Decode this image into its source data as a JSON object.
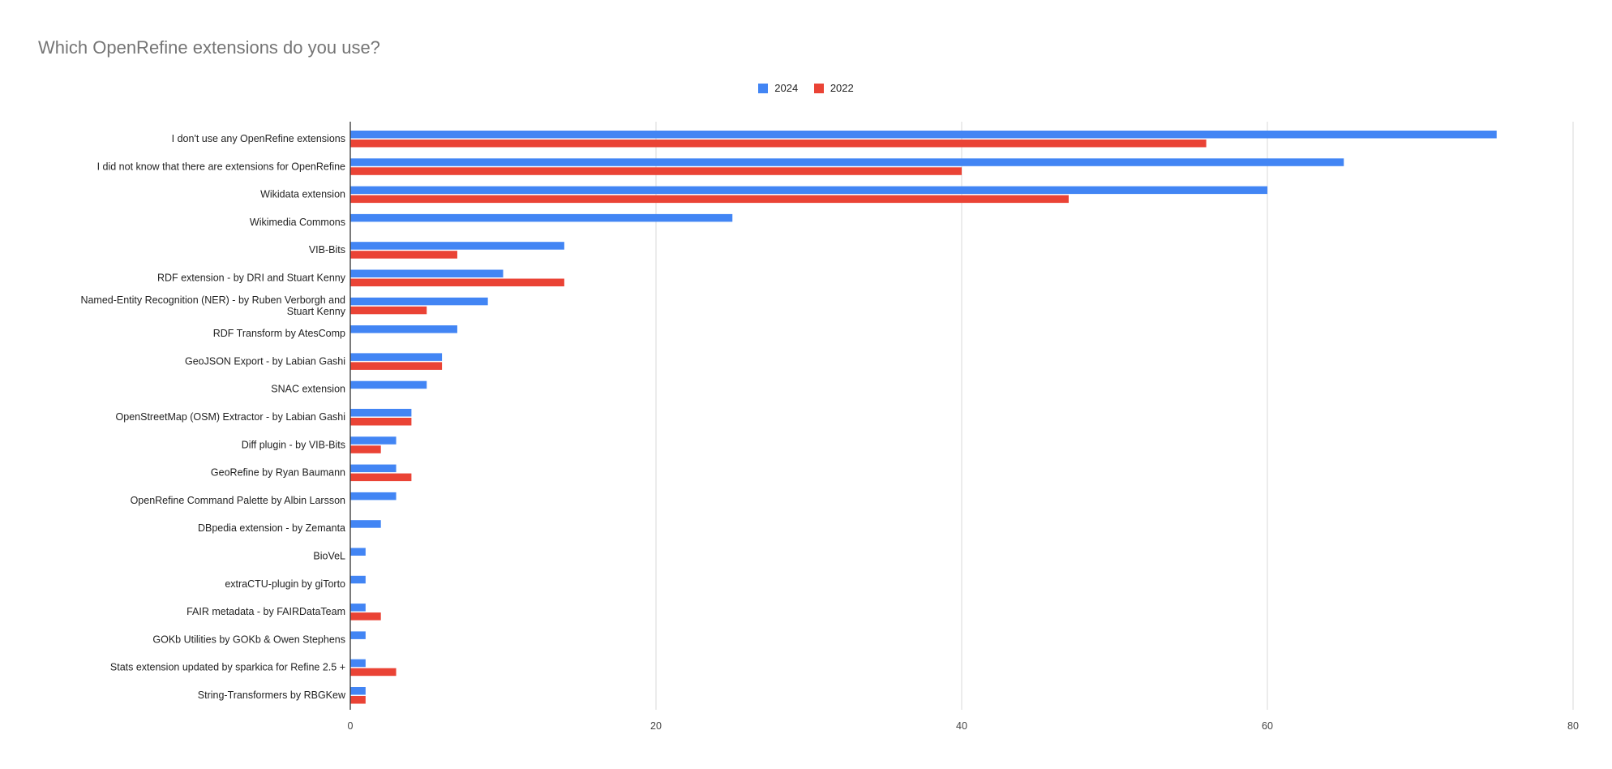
{
  "chart_data": {
    "type": "bar",
    "orientation": "horizontal",
    "title": "Which OpenRefine extensions do you use?",
    "xlabel": "",
    "ylabel": "",
    "xlim": [
      0,
      80
    ],
    "xticks": [
      0,
      20,
      40,
      60,
      80
    ],
    "grid": true,
    "legend_position": "top",
    "categories": [
      "I don't use any OpenRefine extensions",
      "I did not know that there are extensions for OpenRefine",
      "Wikidata extension",
      "Wikimedia Commons",
      "VIB-Bits",
      "RDF extension - by DRI and Stuart Kenny",
      "Named-Entity Recognition (NER) - by Ruben Verborgh and Stuart Kenny",
      "RDF Transform by AtesComp",
      "GeoJSON Export - by Labian Gashi",
      "SNAC extension",
      "OpenStreetMap (OSM) Extractor - by Labian Gashi",
      "Diff plugin - by VIB-Bits",
      "GeoRefine by Ryan Baumann",
      "OpenRefine Command Palette by Albin Larsson",
      "DBpedia extension - by Zemanta",
      "BioVeL",
      "extraCTU-plugin by giTorto",
      "FAIR metadata - by FAIRDataTeam",
      "GOKb Utilities by GOKb & Owen Stephens",
      "Stats extension updated by sparkica for Refine 2.5 +",
      "String-Transformers by RBGKew"
    ],
    "series": [
      {
        "name": "2024",
        "color": "#4285f4",
        "values": [
          75,
          65,
          60,
          25,
          14,
          10,
          9,
          7,
          6,
          5,
          4,
          3,
          3,
          3,
          2,
          1,
          1,
          1,
          1,
          1,
          1
        ]
      },
      {
        "name": "2022",
        "color": "#ea4335",
        "values": [
          56,
          40,
          47,
          0,
          7,
          14,
          5,
          0,
          6,
          0,
          4,
          2,
          4,
          0,
          0,
          0,
          0,
          2,
          0,
          3,
          1
        ]
      }
    ]
  }
}
